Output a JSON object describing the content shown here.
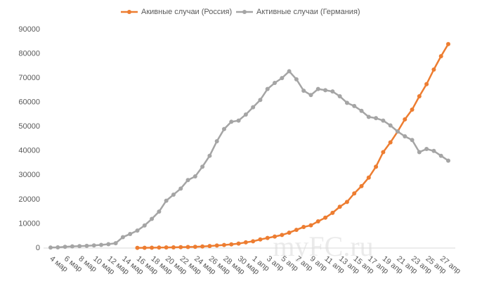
{
  "chart_data": {
    "type": "line",
    "categories": [
      "4 мар",
      null,
      "6 мар",
      null,
      "8 мар",
      null,
      "10 мар",
      null,
      "12 мар",
      null,
      "14 мар",
      null,
      "16 мар",
      null,
      "18 мар",
      null,
      "20 мар",
      null,
      "22 мар",
      null,
      "24 мар",
      null,
      "26 мар",
      null,
      "28 мар",
      null,
      "30 мар",
      null,
      "1 апр",
      null,
      "3 апр",
      null,
      "5 апр",
      null,
      "7 апр",
      null,
      "9 апр",
      null,
      "11 апр",
      null,
      "13 апр",
      null,
      "15 апр",
      null,
      "17 апр",
      null,
      "19 апр",
      null,
      "21 апр",
      null,
      "23 апр",
      null,
      "25 апр",
      null,
      "27 апр",
      null
    ],
    "series": [
      {
        "name": "Акивные случаи (Россия)",
        "color": "#ed7d31",
        "values": [
          null,
          null,
          null,
          null,
          null,
          null,
          null,
          null,
          null,
          null,
          null,
          null,
          90,
          114,
          147,
          199,
          253,
          306,
          367,
          438,
          495,
          658,
          840,
          1036,
          1264,
          1534,
          1836,
          2337,
          2777,
          3548,
          4149,
          4731,
          5389,
          6343,
          7497,
          8672,
          9357,
          11000,
          12500,
          14500,
          17000,
          19000,
          22500,
          25500,
          29000,
          33500,
          39500,
          43500,
          48000,
          53000,
          57000,
          62500,
          67500,
          73500,
          79000,
          84000
        ]
      },
      {
        "name": "Активные случаи (Германия)",
        "color": "#a5a5a5",
        "values": [
          200,
          300,
          500,
          700,
          800,
          900,
          1100,
          1300,
          1600,
          2000,
          4500,
          5800,
          7200,
          9300,
          12000,
          15000,
          19500,
          22000,
          24500,
          28000,
          29500,
          33500,
          38000,
          44000,
          49000,
          52000,
          52500,
          55000,
          58000,
          61000,
          65500,
          68000,
          70000,
          72800,
          69500,
          64800,
          63000,
          65500,
          65000,
          64500,
          62500,
          59800,
          58500,
          56500,
          54000,
          53500,
          52500,
          50500,
          48000,
          46000,
          44500,
          39500,
          40800,
          40000,
          38000,
          36000
        ]
      }
    ],
    "ylim": [
      0,
      90000
    ],
    "yticks": [
      0,
      10000,
      20000,
      30000,
      40000,
      50000,
      60000,
      70000,
      80000,
      90000
    ],
    "grid": false,
    "legend": "top",
    "watermark": "myFC.ru"
  }
}
